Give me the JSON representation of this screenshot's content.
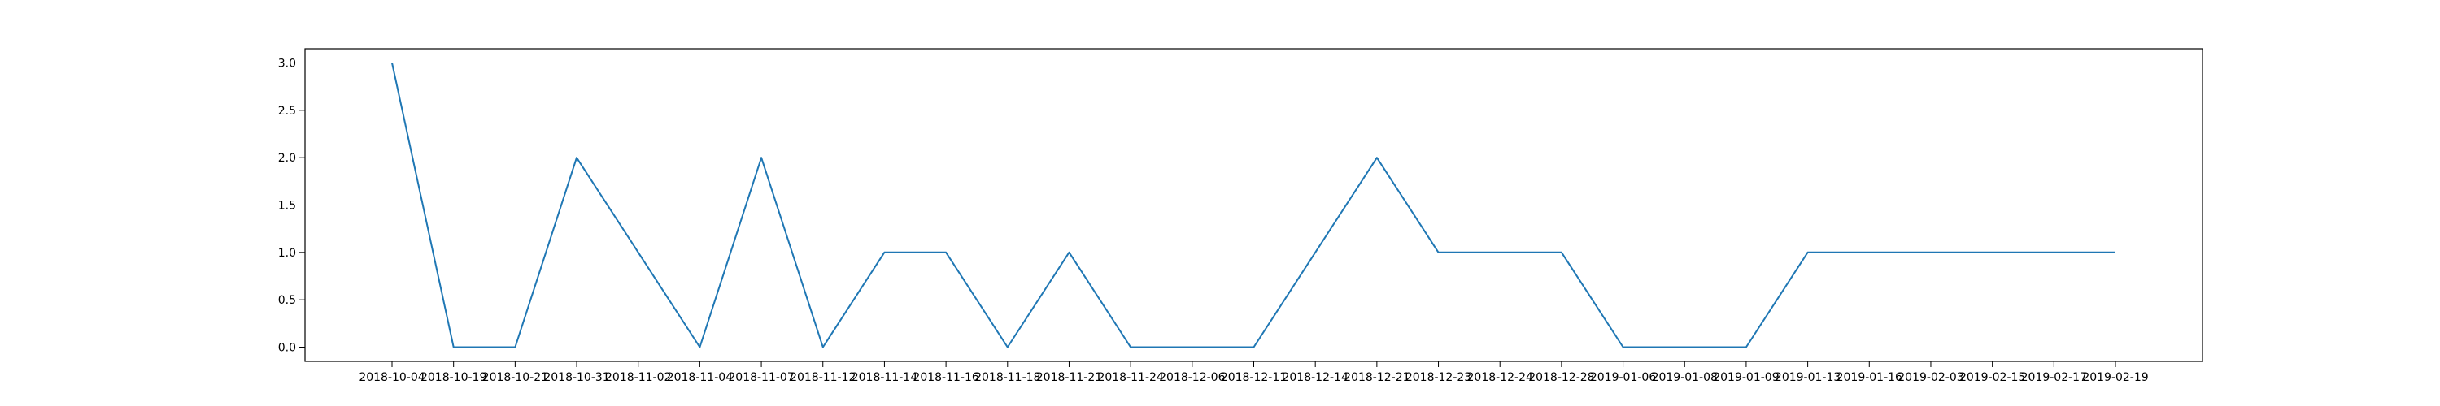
{
  "chart_data": {
    "type": "line",
    "title": "",
    "xlabel": "",
    "ylabel": "",
    "x": [
      "2018-10-04",
      "2018-10-19",
      "2018-10-21",
      "2018-10-31",
      "2018-11-02",
      "2018-11-04",
      "2018-11-07",
      "2018-11-12",
      "2018-11-14",
      "2018-11-16",
      "2018-11-18",
      "2018-11-21",
      "2018-11-24",
      "2018-12-06",
      "2018-12-11",
      "2018-12-14",
      "2018-12-21",
      "2018-12-23",
      "2018-12-24",
      "2018-12-28",
      "2019-01-06",
      "2019-01-08",
      "2019-01-09",
      "2019-01-13",
      "2019-01-16",
      "2019-02-03",
      "2019-02-15",
      "2019-02-17",
      "2019-02-19"
    ],
    "series": [
      {
        "color": "#1f77b4",
        "values": [
          3,
          0,
          0,
          2,
          1,
          0,
          2,
          0,
          1,
          1,
          0,
          1,
          0,
          0,
          0,
          1,
          2,
          1,
          1,
          1,
          0,
          0,
          0,
          1,
          1,
          1,
          1,
          1,
          1
        ]
      }
    ],
    "ylim": [
      -0.15,
      3.15
    ],
    "yticks": [
      "0.0",
      "0.5",
      "1.0",
      "1.5",
      "2.0",
      "2.5",
      "3.0"
    ],
    "grid": false,
    "legend": "none"
  }
}
